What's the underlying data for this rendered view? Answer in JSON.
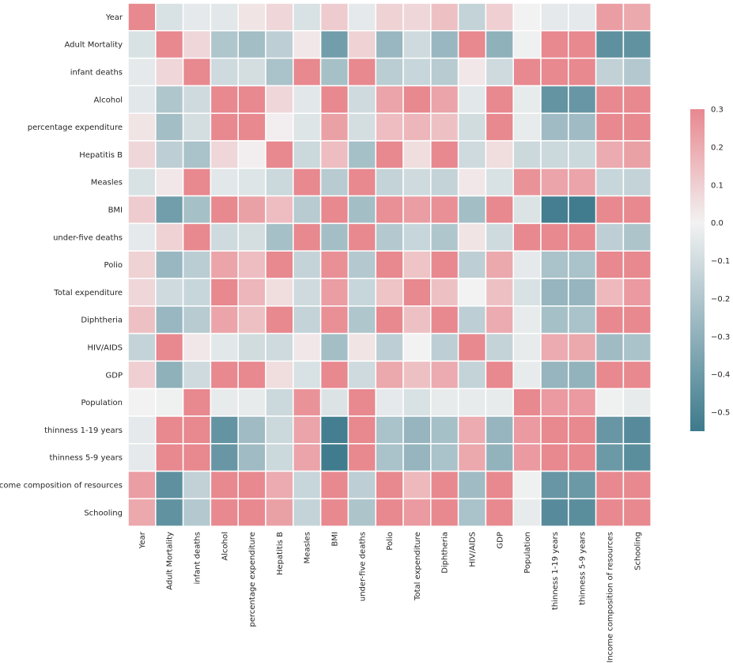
{
  "chart_data": {
    "type": "heatmap",
    "title": "",
    "xlabel": "",
    "ylabel": "",
    "variables": [
      "Year",
      "Adult Mortality",
      "infant deaths",
      "Alcohol",
      "percentage expenditure",
      "Hepatitis B",
      "Measles",
      "BMI",
      "under-five deaths",
      "Polio",
      "Total expenditure",
      "Diphtheria",
      "HIV/AIDS",
      "GDP",
      "Population",
      "thinness  1-19 years",
      "thinness 5-9 years",
      "Income composition of resources",
      "Schooling"
    ],
    "values": [
      [
        1.0,
        -0.08,
        -0.04,
        -0.05,
        0.04,
        0.08,
        -0.08,
        0.11,
        -0.04,
        0.09,
        0.08,
        0.14,
        -0.14,
        0.1,
        0.0,
        -0.04,
        -0.04,
        0.24,
        0.21
      ],
      [
        -0.08,
        1.0,
        0.08,
        -0.2,
        -0.24,
        -0.16,
        0.03,
        -0.39,
        0.09,
        -0.27,
        -0.11,
        -0.27,
        0.52,
        -0.3,
        -0.01,
        0.3,
        0.3,
        -0.45,
        -0.44
      ],
      [
        -0.04,
        0.08,
        1.0,
        -0.11,
        -0.09,
        -0.22,
        0.5,
        -0.23,
        1.0,
        -0.17,
        -0.13,
        -0.18,
        0.03,
        -0.11,
        0.56,
        0.47,
        0.47,
        -0.15,
        -0.19
      ],
      [
        -0.05,
        -0.2,
        -0.11,
        1.0,
        0.34,
        0.08,
        -0.05,
        0.33,
        -0.11,
        0.22,
        0.3,
        0.22,
        -0.05,
        0.35,
        -0.03,
        -0.43,
        -0.42,
        0.45,
        0.55
      ],
      [
        0.04,
        -0.24,
        -0.09,
        0.34,
        1.0,
        0.01,
        -0.06,
        0.23,
        -0.09,
        0.15,
        0.17,
        0.14,
        -0.1,
        0.9,
        -0.03,
        -0.25,
        -0.25,
        0.38,
        0.39
      ],
      [
        0.08,
        -0.16,
        -0.22,
        0.08,
        0.01,
        1.0,
        -0.12,
        0.15,
        -0.23,
        0.49,
        0.06,
        0.61,
        -0.11,
        0.06,
        -0.12,
        -0.12,
        -0.12,
        0.2,
        0.23
      ],
      [
        -0.08,
        0.03,
        0.5,
        -0.05,
        -0.06,
        -0.12,
        1.0,
        -0.18,
        0.51,
        -0.14,
        -0.11,
        -0.14,
        0.03,
        -0.08,
        0.27,
        0.22,
        0.22,
        -0.13,
        -0.14
      ],
      [
        0.11,
        -0.39,
        -0.23,
        0.33,
        0.23,
        0.15,
        -0.18,
        1.0,
        -0.24,
        0.28,
        0.24,
        0.28,
        -0.24,
        0.3,
        -0.07,
        -0.53,
        -0.54,
        0.51,
        0.55
      ],
      [
        -0.04,
        0.09,
        1.0,
        -0.11,
        -0.09,
        -0.23,
        0.51,
        -0.24,
        1.0,
        -0.19,
        -0.13,
        -0.2,
        0.04,
        -0.11,
        0.54,
        0.47,
        0.47,
        -0.16,
        -0.21
      ],
      [
        0.09,
        -0.27,
        -0.17,
        0.22,
        0.15,
        0.49,
        -0.14,
        0.28,
        -0.19,
        1.0,
        0.13,
        0.67,
        -0.16,
        0.21,
        -0.04,
        -0.22,
        -0.22,
        0.38,
        0.42
      ],
      [
        0.08,
        -0.11,
        -0.13,
        0.3,
        0.17,
        0.06,
        -0.11,
        0.24,
        -0.13,
        0.13,
        1.0,
        0.14,
        -0.0,
        0.14,
        -0.08,
        -0.28,
        -0.28,
        0.16,
        0.25
      ],
      [
        0.14,
        -0.27,
        -0.18,
        0.22,
        0.14,
        0.61,
        -0.14,
        0.28,
        -0.2,
        0.67,
        0.14,
        1.0,
        -0.16,
        0.2,
        -0.03,
        -0.23,
        -0.22,
        0.4,
        0.43
      ],
      [
        -0.14,
        0.52,
        0.03,
        -0.05,
        -0.1,
        -0.11,
        0.03,
        -0.24,
        0.04,
        -0.16,
        -0.0,
        -0.16,
        1.0,
        -0.14,
        -0.03,
        0.2,
        0.21,
        -0.25,
        -0.22
      ],
      [
        0.1,
        -0.3,
        -0.11,
        0.35,
        0.9,
        0.06,
        -0.08,
        0.3,
        -0.11,
        0.21,
        0.14,
        0.2,
        -0.14,
        1.0,
        -0.03,
        -0.28,
        -0.29,
        0.46,
        0.45
      ],
      [
        0.0,
        -0.01,
        0.56,
        -0.03,
        -0.03,
        -0.12,
        0.27,
        -0.07,
        0.54,
        -0.04,
        -0.08,
        -0.03,
        -0.03,
        -0.03,
        1.0,
        0.25,
        0.25,
        -0.01,
        -0.03
      ],
      [
        -0.04,
        0.3,
        0.47,
        -0.43,
        -0.25,
        -0.12,
        0.22,
        -0.53,
        0.47,
        -0.22,
        -0.28,
        -0.23,
        0.2,
        -0.28,
        0.25,
        1.0,
        0.94,
        -0.42,
        -0.47
      ],
      [
        -0.04,
        0.3,
        0.47,
        -0.42,
        -0.25,
        -0.12,
        0.22,
        -0.54,
        0.47,
        -0.22,
        -0.28,
        -0.22,
        0.21,
        -0.29,
        0.25,
        0.94,
        1.0,
        -0.41,
        -0.46
      ],
      [
        0.24,
        -0.45,
        -0.15,
        0.45,
        0.38,
        0.2,
        -0.13,
        0.51,
        -0.16,
        0.38,
        0.16,
        0.4,
        -0.25,
        0.46,
        -0.01,
        -0.42,
        -0.41,
        1.0,
        0.8
      ],
      [
        0.21,
        -0.44,
        -0.19,
        0.55,
        0.39,
        0.23,
        -0.14,
        0.55,
        -0.21,
        0.42,
        0.25,
        0.43,
        -0.22,
        0.45,
        -0.03,
        -0.47,
        -0.46,
        0.8,
        1.0
      ]
    ],
    "vmin": -0.55,
    "vmax": 0.3,
    "center": 0,
    "colormap": {
      "low": "#3d7a8c",
      "mid": "#f2f2f2",
      "high": "#e8888f"
    },
    "colorbar": {
      "ticks": [
        0.3,
        0.2,
        0.1,
        0.0,
        -0.1,
        -0.2,
        -0.3,
        -0.4,
        -0.5
      ],
      "tick_labels": [
        "0.3",
        "0.2",
        "0.1",
        "0.0",
        "−0.1",
        "−0.2",
        "−0.3",
        "−0.4",
        "−0.5"
      ]
    }
  }
}
